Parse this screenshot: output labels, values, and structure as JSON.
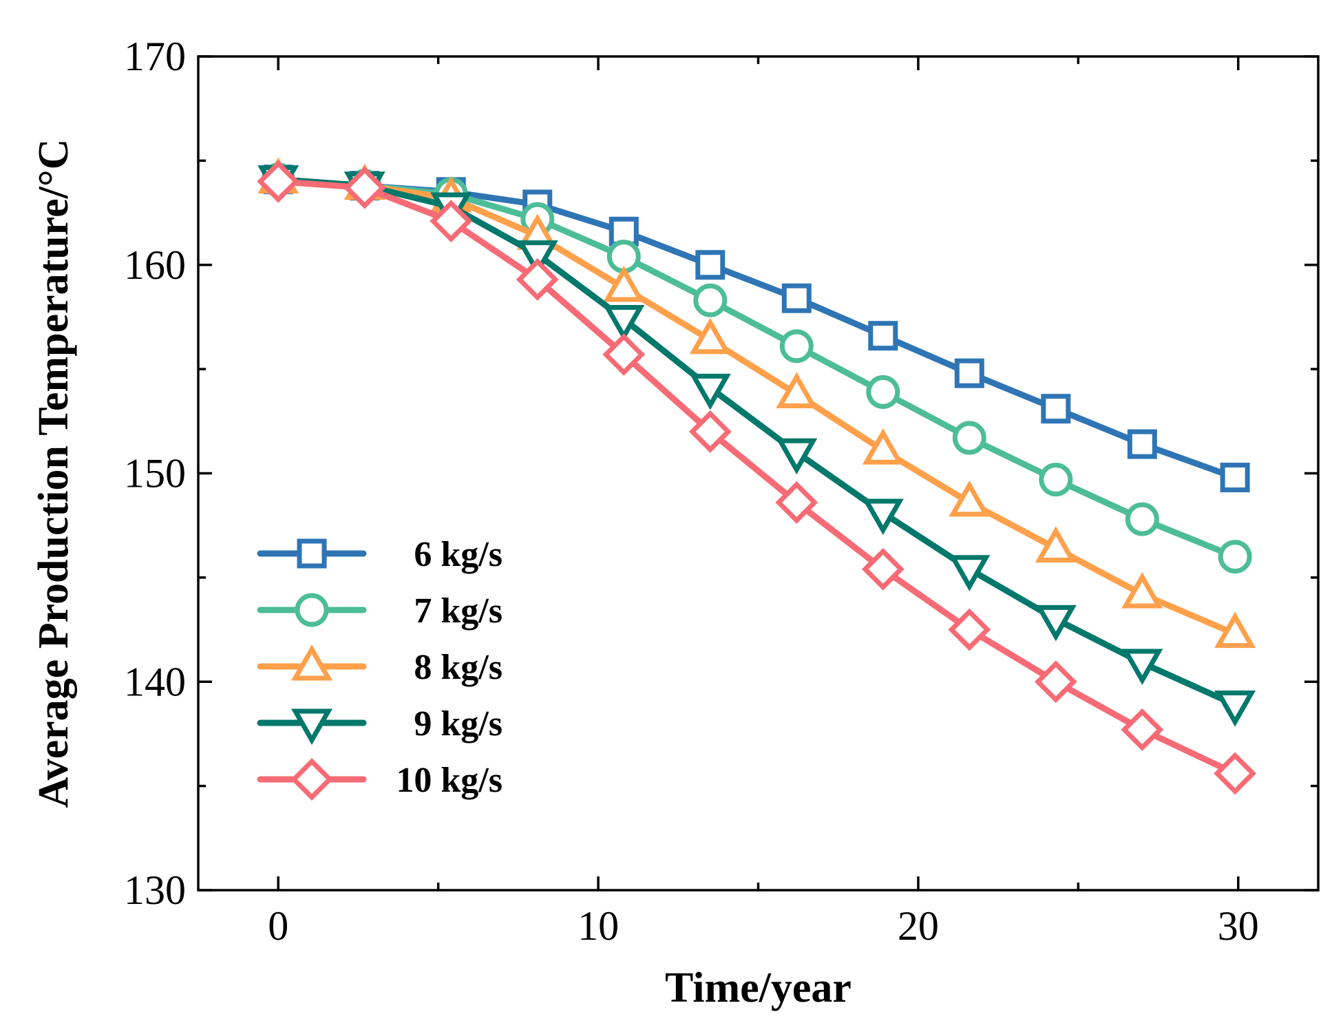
{
  "chart_data": {
    "type": "line",
    "title": "",
    "xlabel": "Time/year",
    "ylabel": "Average Production Temperature/°C",
    "xlim": [
      -2.5,
      32.5
    ],
    "ylim": [
      130,
      170
    ],
    "xticks": [
      0,
      10,
      20,
      30
    ],
    "yticks": [
      130,
      140,
      150,
      160,
      170
    ],
    "x_minor_ticks": [
      5,
      15,
      25
    ],
    "y_minor_ticks": [
      135,
      145,
      155,
      165
    ],
    "legend_position": "lower-left",
    "x": [
      0,
      2.7,
      5.4,
      8.1,
      10.8,
      13.5,
      16.2,
      18.9,
      21.6,
      24.3,
      27.0,
      29.9
    ],
    "series": [
      {
        "name": "6 kg/s",
        "color": "#2f75b5",
        "marker": "square",
        "values": [
          164.1,
          163.8,
          163.5,
          162.9,
          161.6,
          160.0,
          158.4,
          156.6,
          154.8,
          153.1,
          151.4,
          149.8
        ]
      },
      {
        "name": "7 kg/s",
        "color": "#4dbd97",
        "marker": "circle",
        "values": [
          164.1,
          163.8,
          163.4,
          162.2,
          160.4,
          158.3,
          156.1,
          153.9,
          151.7,
          149.7,
          147.8,
          146.0
        ]
      },
      {
        "name": "8 kg/s",
        "color": "#ffa04b",
        "marker": "triangle-up",
        "values": [
          164.1,
          163.8,
          163.2,
          161.4,
          158.9,
          156.4,
          153.8,
          151.1,
          148.6,
          146.4,
          144.2,
          142.3
        ]
      },
      {
        "name": "9 kg/s",
        "color": "#00786b",
        "marker": "triangle-down",
        "values": [
          164.1,
          163.8,
          162.8,
          160.5,
          157.4,
          154.1,
          151.0,
          148.1,
          145.4,
          143.0,
          140.9,
          138.9
        ]
      },
      {
        "name": "10 kg/s",
        "color": "#f66b75",
        "marker": "diamond",
        "values": [
          164.0,
          163.7,
          162.1,
          159.3,
          155.7,
          152.0,
          148.6,
          145.4,
          142.5,
          140.0,
          137.7,
          135.6
        ]
      }
    ]
  }
}
